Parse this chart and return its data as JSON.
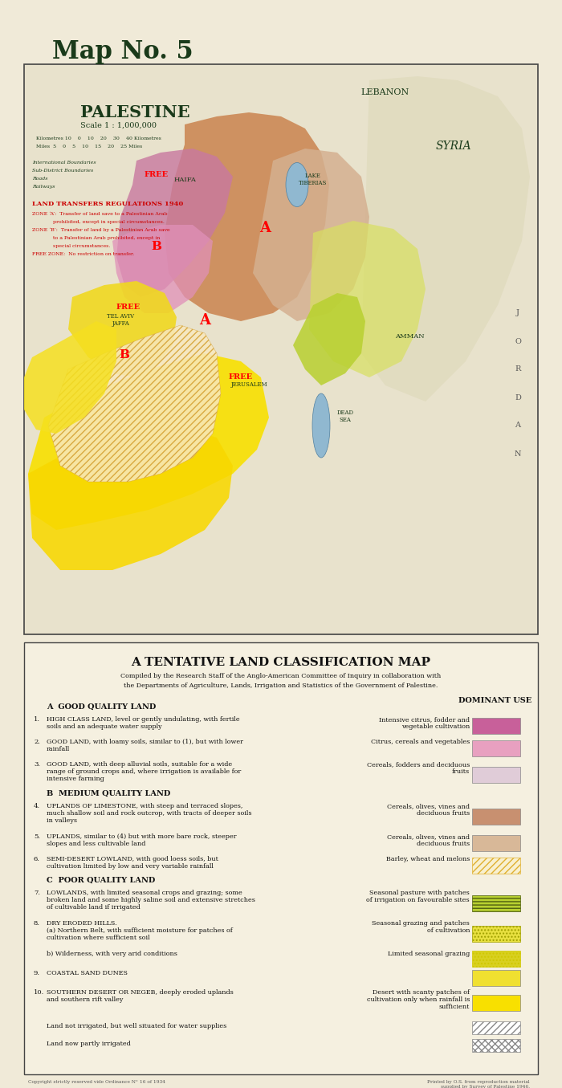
{
  "title": "Map No. 5",
  "bg_color": "#f0ead8",
  "map_bg": "#e8e2cc",
  "map_title": "PALESTINE",
  "map_subtitle": "Scale 1 : 1,000,000",
  "legend_title": "A TENTATIVE LAND CLASSIFICATION MAP",
  "legend_subtitle1": "Compiled by the Research Staff of the Anglo-American Committee of Inquiry in collaboration with",
  "legend_subtitle2": "the Departments of Agriculture, Lands, Irrigation and Statistics of the Government of Palestine.",
  "section_a": "A  GOOD QUALITY LAND",
  "section_b": "B  MEDIUM QUALITY LAND",
  "section_c": "C  POOR QUALITY LAND",
  "dominant_use": "DOMINANT USE",
  "land_types": [
    {
      "num": "1.",
      "name": "HIGH CLASS LAND, level or gently undulating, with fertile\nsoils and an adequate water supply",
      "use": "Intensive citrus, fodder and\nvegetable cultivation",
      "color": "#c8609a",
      "hatch": null,
      "hatch_color": null
    },
    {
      "num": "2.",
      "name": "GOOD LAND, with loamy soils, similar to (1), but with lower\nrainfall",
      "use": "Citrus, cereals and vegetables",
      "color": "#e8a0c0",
      "hatch": null,
      "hatch_color": null
    },
    {
      "num": "3.",
      "name": "GOOD LAND, with deep alluvial soils, suitable for a wide\nrange of ground crops and, where irrigation is available for\nintensive farming",
      "use": "Cereals, fodders and deciduous\nfruits",
      "color": "#e0ccd8",
      "hatch": null,
      "hatch_color": null
    },
    {
      "num": "4.",
      "name": "UPLANDS OF LIMESTONE, with steep and terraced slopes,\nmuch shallow soil and rock outcrop, with tracts of deeper soils\nin valleys",
      "use": "Cereals, olives, vines and\ndeciduous fruits",
      "color": "#c89070",
      "hatch": null,
      "hatch_color": null
    },
    {
      "num": "5.",
      "name": "UPLANDS, similar to (4) but with more bare rock, steeper\nslopes and less cultivable land",
      "use": "Cereals, olives, vines and\ndeciduous fruits",
      "color": "#d8b898",
      "hatch": null,
      "hatch_color": null
    },
    {
      "num": "6.",
      "name": "SEMI-DESERT LOWLAND, with good loess soils, but\ncultivation limited by low and very variable rainfall",
      "use": "Barley, wheat and melons",
      "color": "#f8f0d0",
      "hatch": "////",
      "hatch_color": "#e0b030"
    },
    {
      "num": "7.",
      "name": "LOWLANDS, with limited seasonal crops and grazing; some\nbroken land and some highly saline soil and extensive stretches\nof cultivable land if irrigated",
      "use": "Seasonal pasture with patches\nof irrigation on favourable sites",
      "color": "#b8d030",
      "hatch": "----",
      "hatch_color": "#506010"
    },
    {
      "num": "8.",
      "name": "DRY ERODED HILLS.\n(a) Northern Belt, with sufficient moisture for patches of\ncultivation where sufficient soil",
      "use": "Seasonal grazing and patches\nof cultivation",
      "color": "#e8e040",
      "hatch": "....",
      "hatch_color": "#a0a000"
    },
    {
      "num": "",
      "name": "b) Wilderness, with very arid conditions",
      "use": "Limited seasonal grazing",
      "color": "#d8d020",
      "hatch": "....",
      "hatch_color": "#d0c800"
    },
    {
      "num": "9.",
      "name": "COASTAL SAND DUNES",
      "use": "",
      "color": "#f0e030",
      "hatch": null,
      "hatch_color": null
    },
    {
      "num": "10.",
      "name": "SOUTHERN DESERT OR NEGEB, deeply eroded uplands\nand southern rift valley",
      "use": "Desert with scanty patches of\ncultivation only when rainfall is\nsufficient",
      "color": "#f8e000",
      "hatch": null,
      "hatch_color": null
    }
  ],
  "extra_items": [
    {
      "label": "Land not irrigated, but well situated for water supplies",
      "color": "#ffffff",
      "hatch": "////",
      "hatch_color": "#888888"
    },
    {
      "label": "Land now partly irrigated",
      "color": "#ffffff",
      "hatch": "xxxx",
      "hatch_color": "#888888"
    }
  ],
  "land_transfers_title": "LAND TRANSFERS REGULATIONS 1940",
  "land_transfers_text": [
    "ZONE ‘A’:  Transfer of land save to a Palestinian Arab",
    "             prohibited, except in special circumstances.",
    "ZONE ‘B’:  Transfer of land by a Palestinian Arab save",
    "             to a Palestinian Arab prohibited, except in",
    "             special circumstances.",
    "FREE ZONE:  No restriction on transfer."
  ],
  "copyright_left": "Copyright strictly reserved vide Ordinance N° 16 of 1934",
  "copyright_right": "Printed by O.S. from reproduction material\nsupplied by Survey of Palestine 1946."
}
